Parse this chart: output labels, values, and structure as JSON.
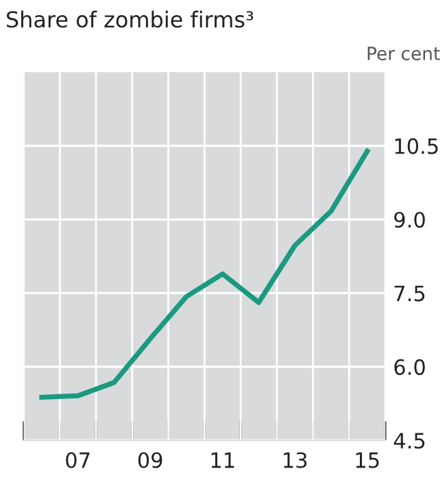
{
  "chart_data": {
    "type": "line",
    "title": "Share of zombie firms³",
    "ylabel": "Per cent",
    "categories": [
      null,
      "07",
      null,
      "09",
      null,
      "11",
      null,
      "13",
      null,
      "15"
    ],
    "series": [
      {
        "color": "#1a9a80",
        "values": [
          5.38,
          5.41,
          5.68,
          6.57,
          7.43,
          7.89,
          7.31,
          8.47,
          9.17,
          10.39
        ]
      }
    ],
    "ylim": [
      4.5,
      12
    ],
    "yticks": [
      {
        "value": 4.5,
        "label": "4.5"
      },
      {
        "value": 6.0,
        "label": "6.0"
      },
      {
        "value": 7.5,
        "label": "7.5"
      },
      {
        "value": 9.0,
        "label": "9.0"
      },
      {
        "value": 10.5,
        "label": "10.5"
      }
    ],
    "grid": true,
    "legend": false,
    "marker": "none",
    "line_style": "solid"
  }
}
